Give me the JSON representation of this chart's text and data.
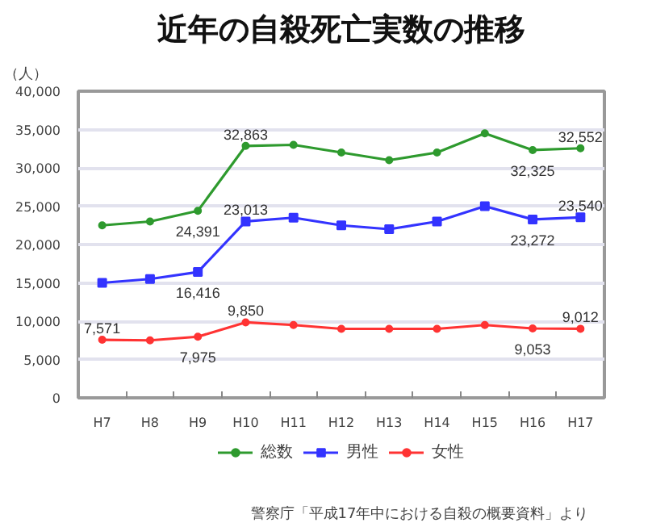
{
  "chart_data": {
    "type": "line",
    "title": "近年の自殺死亡実数の推移",
    "ylabel": "（人）",
    "categories": [
      "H7",
      "H8",
      "H9",
      "H10",
      "H11",
      "H12",
      "H13",
      "H14",
      "H15",
      "H16",
      "H17"
    ],
    "series": [
      {
        "name": "総数",
        "color": "#2e9a2e",
        "marker": "circle",
        "values": [
          22500,
          23000,
          24391,
          32863,
          33000,
          32000,
          31000,
          32000,
          34500,
          32325,
          32552
        ],
        "value_labels": [
          null,
          null,
          "24,391",
          "32,863",
          null,
          null,
          null,
          null,
          null,
          "32,325",
          "32,552"
        ]
      },
      {
        "name": "男性",
        "color": "#3333ff",
        "marker": "square",
        "values": [
          15000,
          15500,
          16416,
          23013,
          23500,
          22500,
          22000,
          23000,
          25000,
          23272,
          23540
        ],
        "value_labels": [
          null,
          null,
          "16,416",
          "23,013",
          null,
          null,
          null,
          null,
          null,
          "23,272",
          "23,540"
        ]
      },
      {
        "name": "女性",
        "color": "#ff3333",
        "marker": "circle",
        "values": [
          7571,
          7500,
          7975,
          9850,
          9500,
          9000,
          9000,
          9000,
          9500,
          9053,
          9012
        ],
        "value_labels": [
          "7,571",
          null,
          "7,975",
          "9,850",
          null,
          null,
          null,
          null,
          null,
          "9,053",
          "9,012"
        ]
      }
    ],
    "ylim": [
      0,
      40000
    ],
    "yticks": [
      0,
      {
        "value": 5000,
        "label": "5,000"
      },
      {
        "value": 10000,
        "label": "10,000"
      },
      {
        "value": 15000,
        "label": "15,000"
      },
      {
        "value": 20000,
        "label": "20,000"
      },
      {
        "value": 25000,
        "label": "25,000"
      },
      {
        "value": 30000,
        "label": "30,000"
      },
      {
        "value": 35000,
        "label": "35,000"
      },
      {
        "value": 40000,
        "label": "40,000"
      }
    ],
    "grid": "y",
    "legend": "bottom",
    "line_style": "solid",
    "annotations": [
      "警察庁「平成17年中における自殺の概要資料」より"
    ]
  }
}
